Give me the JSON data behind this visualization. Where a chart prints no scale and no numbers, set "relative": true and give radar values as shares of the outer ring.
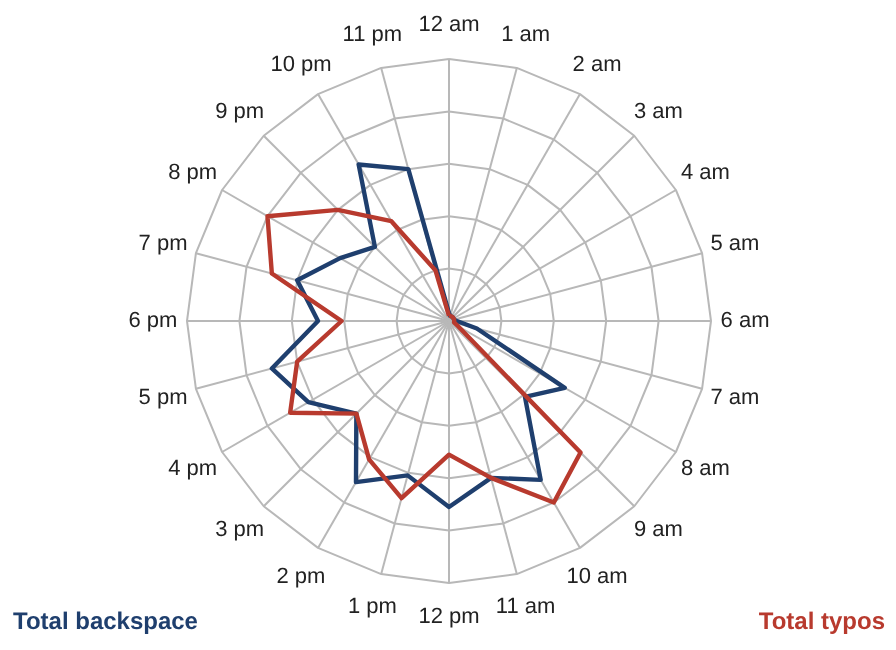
{
  "chart_data": {
    "type": "radar",
    "relative": true,
    "grid": true,
    "legend": "bottom",
    "categories": [
      "12 am",
      "1 am",
      "2 am",
      "3 am",
      "4 am",
      "5 am",
      "6 am",
      "7 am",
      "8 am",
      "9 am",
      "10 am",
      "11 am",
      "12 pm",
      "1 pm",
      "2 pm",
      "3 pm",
      "4 pm",
      "5 pm",
      "6 pm",
      "7 pm",
      "8 pm",
      "9 pm",
      "10 pm",
      "11 pm"
    ],
    "series": [
      {
        "name": "Total backspace",
        "color": "#1f3f6e",
        "values": [
          0.03,
          0.02,
          0.02,
          0.02,
          0.02,
          0.02,
          0.03,
          0.11,
          0.51,
          0.41,
          0.7,
          0.62,
          0.71,
          0.61,
          0.71,
          0.5,
          0.62,
          0.7,
          0.5,
          0.6,
          0.48,
          0.4,
          0.69,
          0.6
        ]
      },
      {
        "name": "Total typos",
        "color": "#b83a2e",
        "values": [
          0.02,
          0.02,
          0.02,
          0.02,
          0.02,
          0.02,
          0.02,
          0.02,
          0.04,
          0.71,
          0.8,
          0.62,
          0.51,
          0.7,
          0.61,
          0.5,
          0.7,
          0.6,
          0.41,
          0.7,
          0.8,
          0.6,
          0.44,
          0.2
        ]
      }
    ]
  }
}
